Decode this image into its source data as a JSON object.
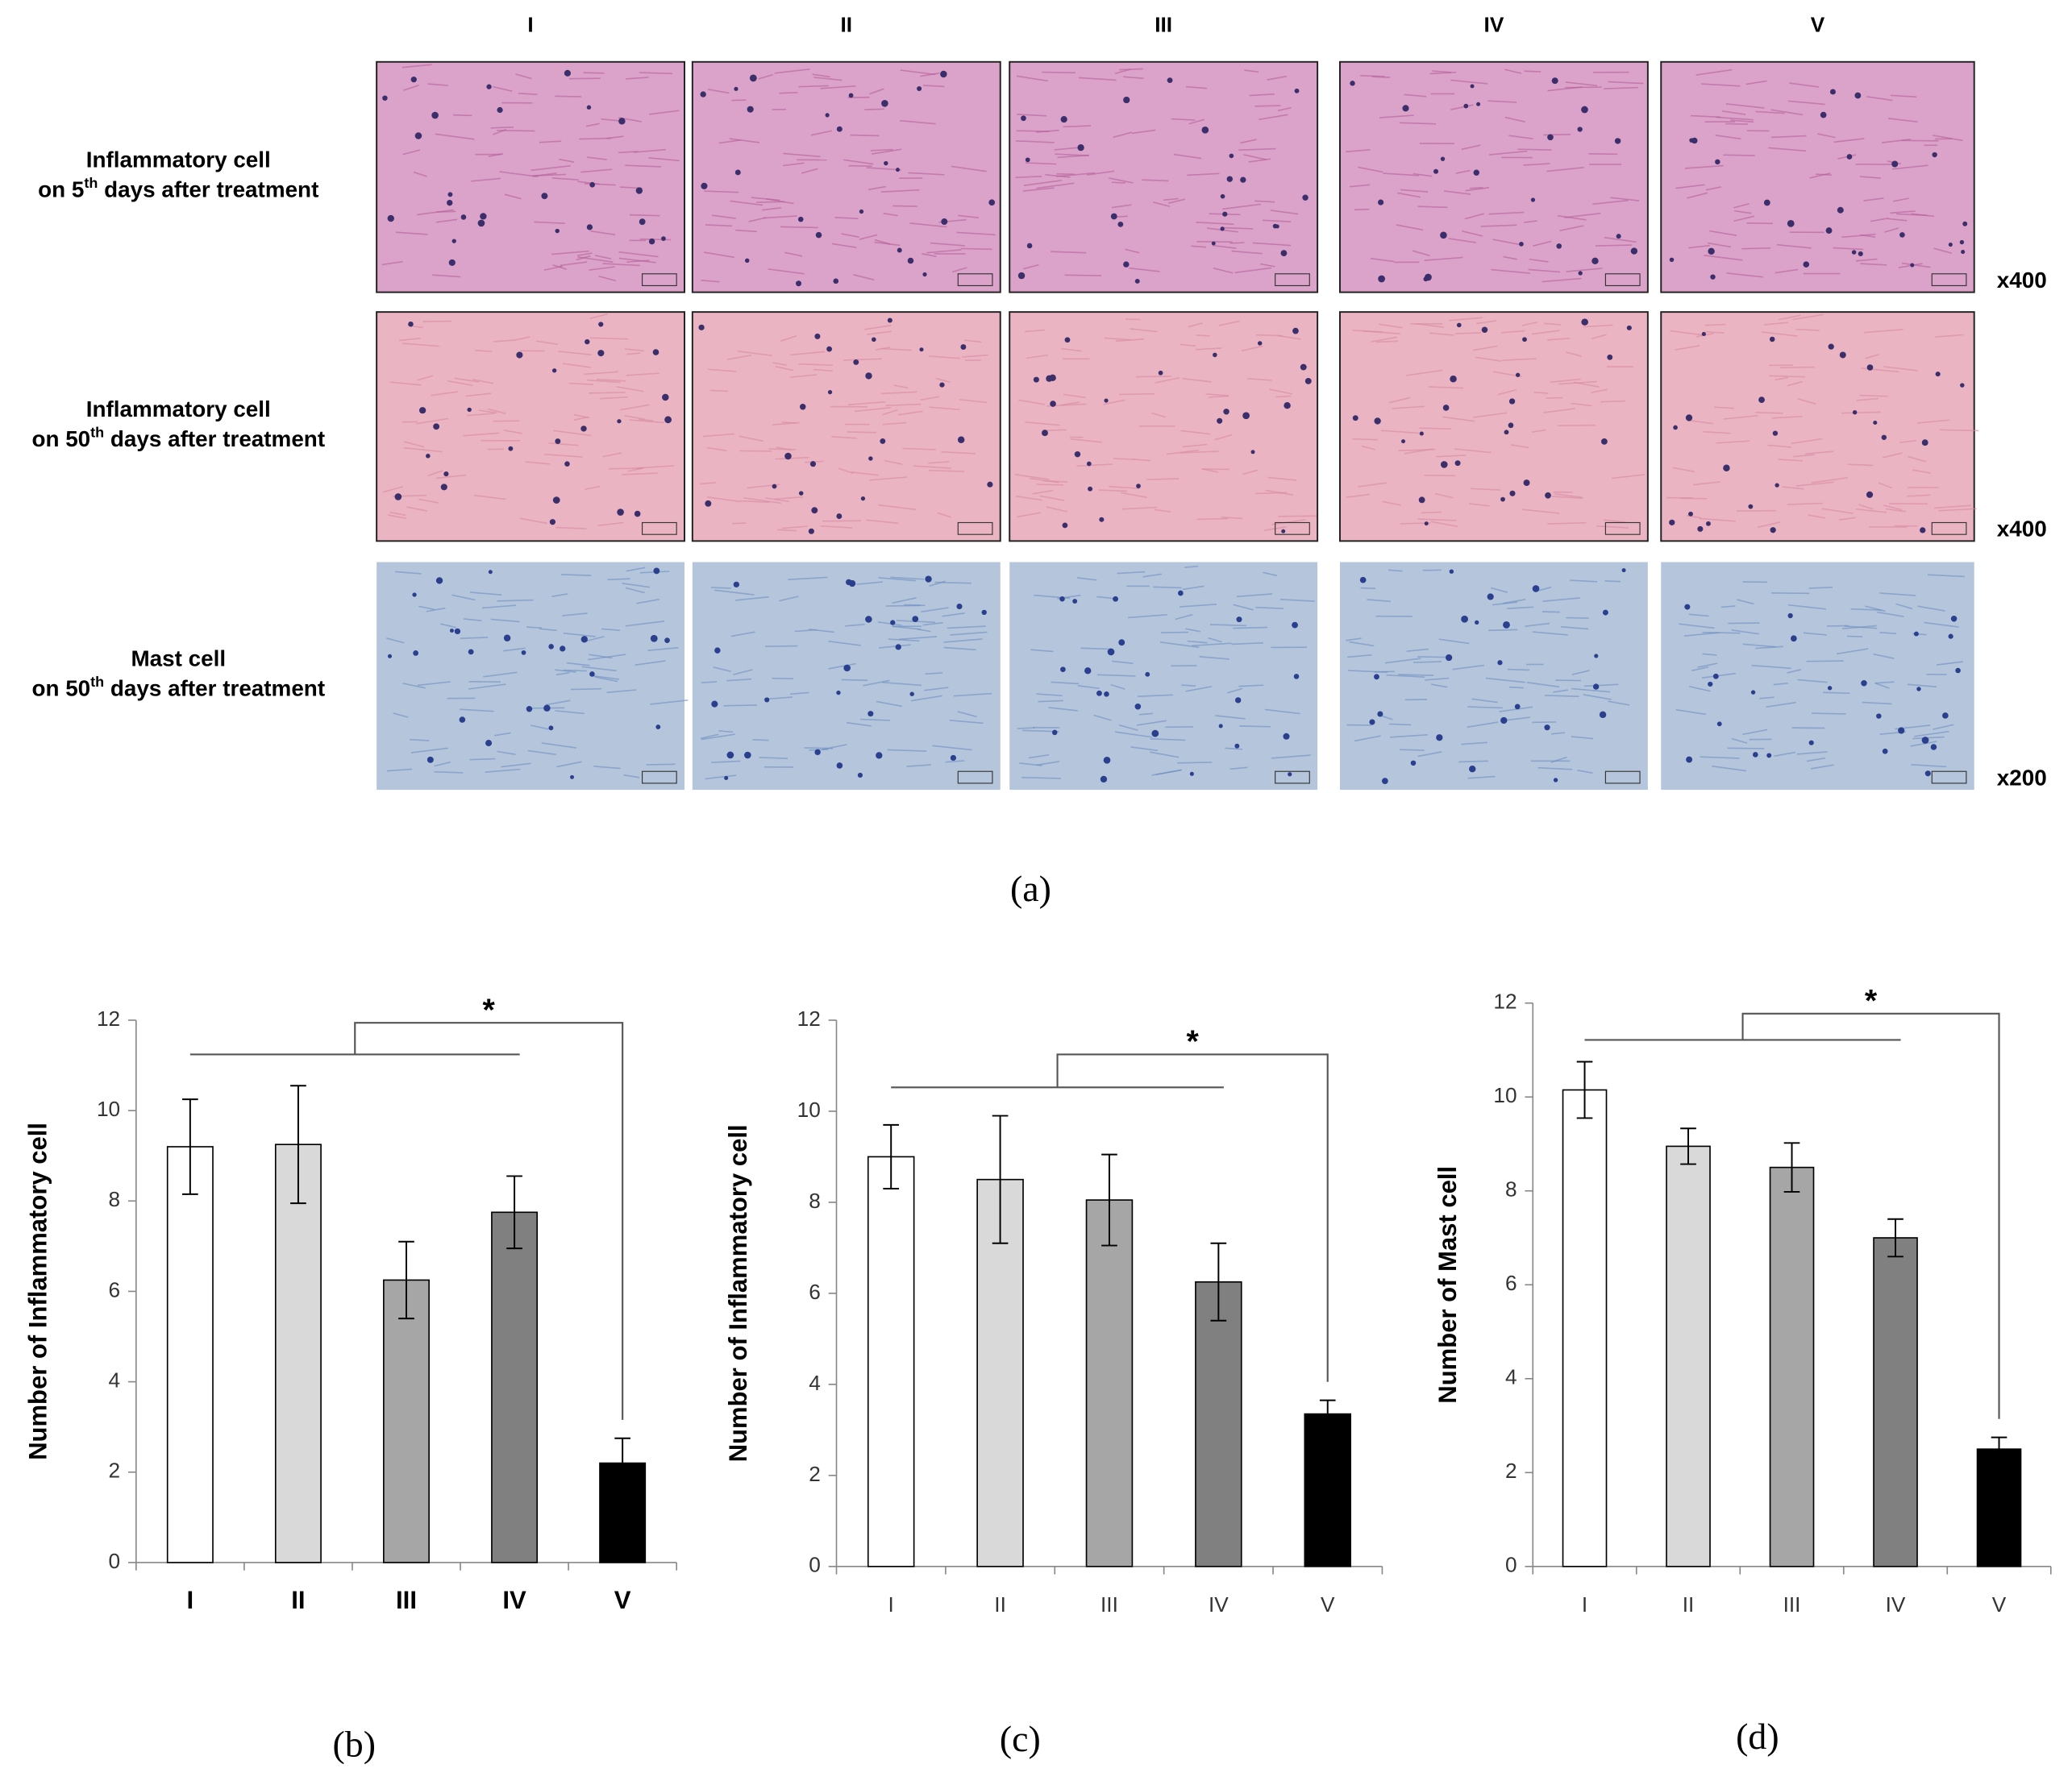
{
  "panel_a": {
    "label": "(a)",
    "columns": [
      "I",
      "II",
      "III",
      "IV",
      "V"
    ],
    "rows": [
      {
        "line1": "Inflammatory cell",
        "line2_start": "on 5",
        "line2_sup": "th",
        "line2_end": " days after treatment",
        "magnification": "x400"
      },
      {
        "line1": "Inflammatory cell",
        "line2_start": "on 50",
        "line2_sup": "th",
        "line2_end": " days after treatment",
        "magnification": "x400"
      },
      {
        "line1": "Mast cell",
        "line2_start": "on 50",
        "line2_sup": "th",
        "line2_end": " days after treatment",
        "magnification": "x200"
      }
    ]
  },
  "chart_data": [
    {
      "type": "bar",
      "panel_label": "(b)",
      "y_label": "Number of Inflammatory cell",
      "annotation": "*",
      "categories": [
        "I",
        "II",
        "III",
        "IV",
        "V"
      ],
      "values": [
        9.2,
        9.25,
        6.25,
        7.75,
        2.2
      ],
      "errors": [
        1.05,
        1.3,
        0.85,
        0.8,
        0.55
      ],
      "colors": [
        "#ffffff",
        "#d9d9d9",
        "#a6a6a6",
        "#808080",
        "#000000"
      ],
      "ylim": [
        0,
        12
      ],
      "yticks": [
        0,
        2,
        4,
        6,
        8,
        10,
        12
      ]
    },
    {
      "type": "bar",
      "panel_label": "(c)",
      "y_label": "Number of Inflammatory cell",
      "annotation": "*",
      "categories": [
        "I",
        "II",
        "III",
        "IV",
        "V"
      ],
      "values": [
        9.0,
        8.5,
        8.05,
        6.25,
        3.35
      ],
      "errors": [
        0.7,
        1.4,
        1.0,
        0.85,
        0.3
      ],
      "colors": [
        "#ffffff",
        "#d9d9d9",
        "#a6a6a6",
        "#808080",
        "#000000"
      ],
      "ylim": [
        0,
        12
      ],
      "yticks": [
        0,
        2,
        4,
        6,
        8,
        10,
        12
      ]
    },
    {
      "type": "bar",
      "panel_label": "(d)",
      "y_label": "Number of Mast cell",
      "annotation": "*",
      "categories": [
        "I",
        "II",
        "III",
        "IV",
        "V"
      ],
      "values": [
        10.15,
        8.95,
        8.5,
        7.0,
        2.5
      ],
      "errors": [
        0.6,
        0.38,
        0.52,
        0.4,
        0.25
      ],
      "colors": [
        "#ffffff",
        "#d9d9d9",
        "#a6a6a6",
        "#808080",
        "#000000"
      ],
      "ylim": [
        0,
        12
      ],
      "yticks": [
        0,
        2,
        4,
        6,
        8,
        10,
        12
      ]
    }
  ]
}
